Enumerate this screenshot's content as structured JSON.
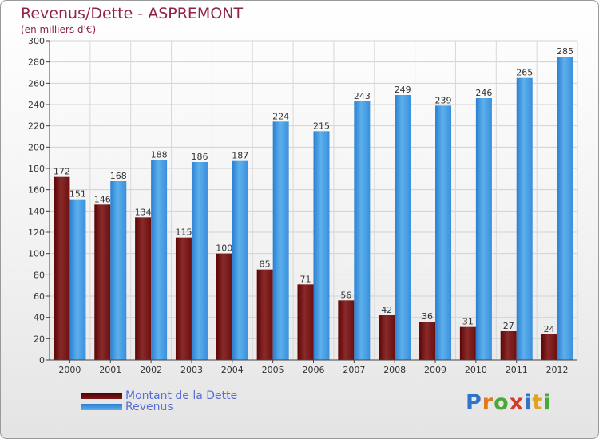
{
  "header": {
    "title": "Revenus/Dette - ASPREMONT",
    "subtitle": "(en milliers d'€)"
  },
  "legend": [
    {
      "label": "Montant de la Dette",
      "color": "#6b0c0c"
    },
    {
      "label": "Revenus",
      "color": "#3f8fd9"
    }
  ],
  "logo": {
    "letters": [
      "P",
      "r",
      "o",
      "x",
      "i",
      "t",
      "i"
    ],
    "colors": [
      "#2f74c8",
      "#e07a1f",
      "#4aa83a",
      "#d23a2a",
      "#2f74c8",
      "#e0a21f",
      "#4aa83a"
    ]
  },
  "chart_data": {
    "type": "bar",
    "categories": [
      "2000",
      "2001",
      "2002",
      "2003",
      "2004",
      "2005",
      "2006",
      "2007",
      "2008",
      "2009",
      "2010",
      "2011",
      "2012"
    ],
    "series": [
      {
        "name": "Montant de la Dette",
        "values": [
          172,
          146,
          134,
          115,
          100,
          85,
          71,
          56,
          42,
          36,
          31,
          27,
          24
        ],
        "color": "#7a1a1a"
      },
      {
        "name": "Revenus",
        "values": [
          151,
          168,
          188,
          186,
          187,
          224,
          215,
          243,
          249,
          239,
          246,
          265,
          285
        ],
        "color": "#3f8fd9"
      }
    ],
    "title": "Revenus/Dette - ASPREMONT",
    "xlabel": "",
    "ylabel": "(en milliers d'€)",
    "ylim": [
      0,
      300
    ],
    "yticks": [
      0,
      20,
      40,
      60,
      80,
      100,
      120,
      140,
      160,
      180,
      200,
      220,
      240,
      260,
      280,
      300
    ],
    "grid": true,
    "legend_position": "bottom-left"
  }
}
